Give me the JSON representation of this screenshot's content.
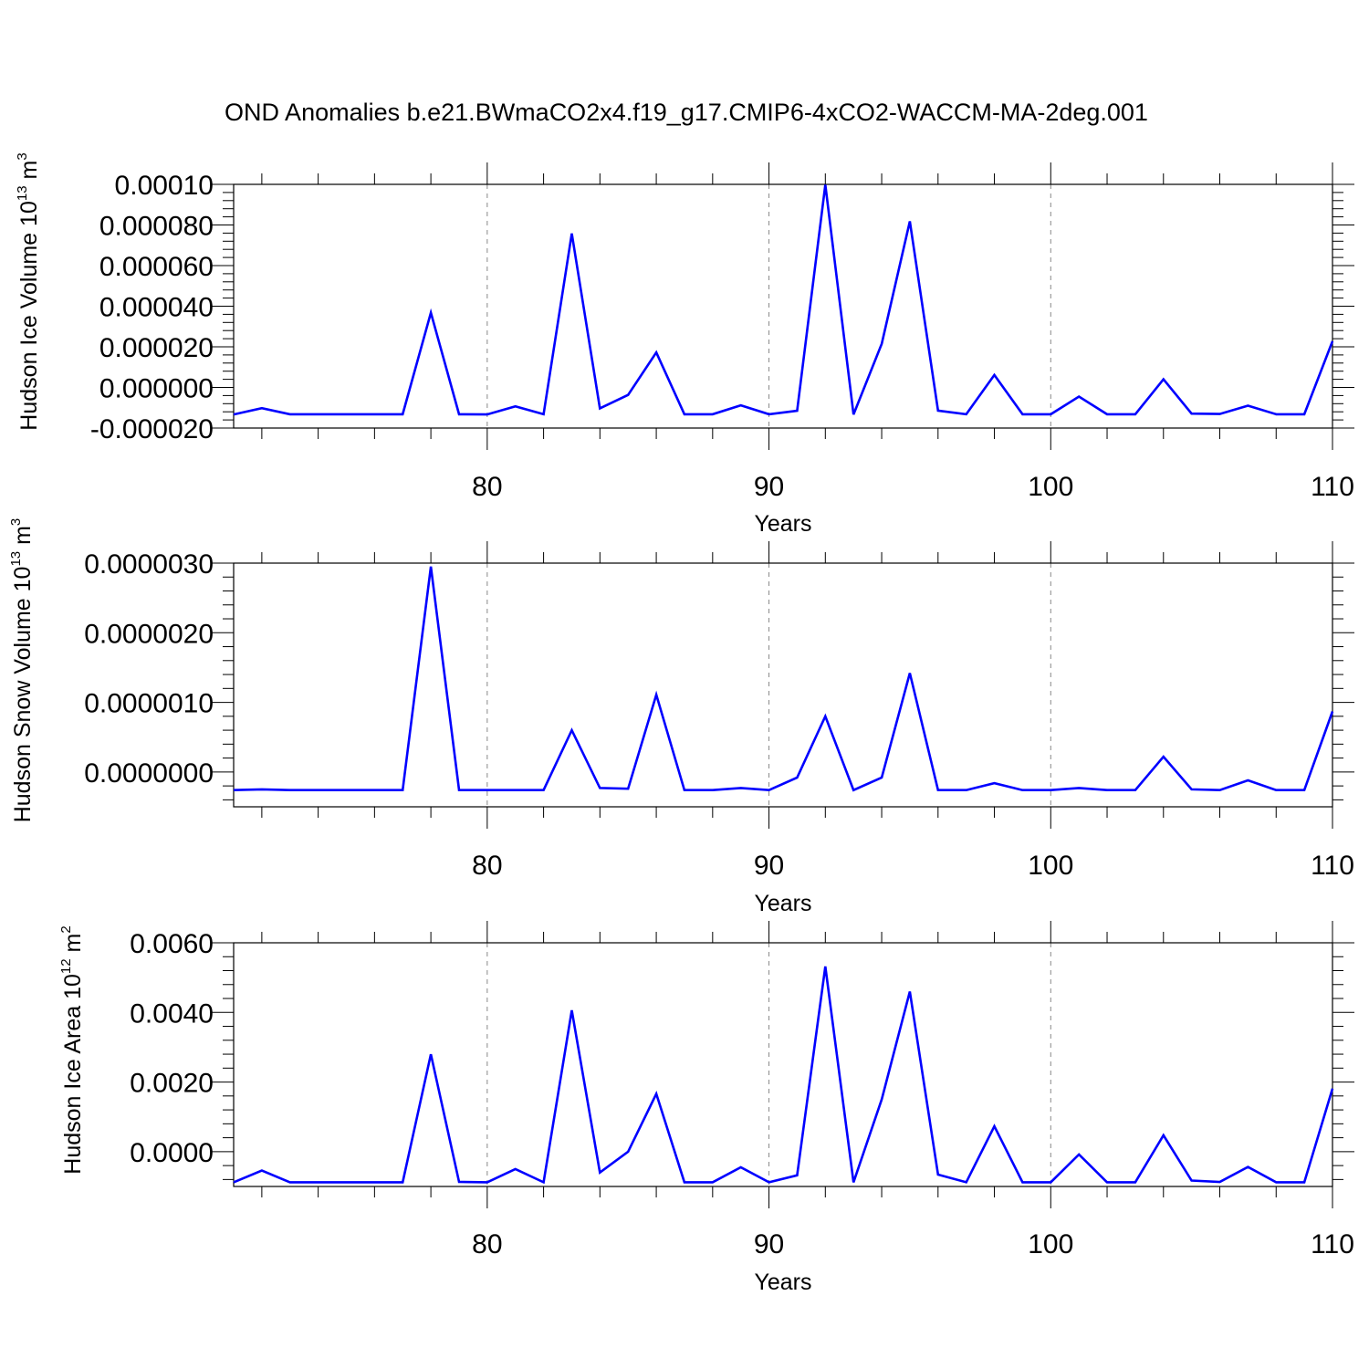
{
  "title": "OND Anomalies b.e21.BWmaCO2x4.f19_g17.CMIP6-4xCO2-WACCM-MA-2deg.001",
  "colors": {
    "line": "#0000ff",
    "axis": "#000000",
    "gridline": "#888888"
  },
  "chart_data": [
    {
      "type": "line",
      "xlabel": "Years",
      "ylabel": {
        "main": "Hudson Ice Volume 10",
        "exponent": "13",
        "unit": "m",
        "unit_power": "3"
      },
      "xlim": [
        71,
        110
      ],
      "ylim": [
        -2e-05,
        0.0001
      ],
      "x_ticks": [
        80,
        90,
        100,
        110
      ],
      "x_tick_labels": [
        "80",
        "90",
        "100",
        "110"
      ],
      "y_ticks": [
        -2e-05,
        0.0,
        2e-05,
        4e-05,
        6e-05,
        8e-05,
        0.0001
      ],
      "y_tick_labels": [
        "-0.000020",
        "0.000000",
        "0.000020",
        "0.000040",
        "0.000060",
        "0.000080",
        "0.00010"
      ],
      "grid": "dashed vertical at major x ticks",
      "series": [
        {
          "x": [
            71,
            72,
            73,
            74,
            75,
            76,
            77,
            78,
            79,
            80,
            81,
            82,
            83,
            84,
            85,
            86,
            87,
            88,
            89,
            90,
            91,
            92,
            93,
            94,
            95,
            96,
            97,
            98,
            99,
            100,
            101,
            102,
            103,
            104,
            105,
            106,
            107,
            108,
            109,
            110
          ],
          "values": [
            -1.33e-05,
            -1.02e-05,
            -1.32e-05,
            -1.32e-05,
            -1.32e-05,
            -1.32e-05,
            -1.32e-05,
            3.68e-05,
            -1.32e-05,
            -1.33e-05,
            -9.3e-06,
            -1.32e-05,
            7.58e-05,
            -1.03e-05,
            -3.7e-06,
            1.72e-05,
            -1.32e-05,
            -1.32e-05,
            -8.8e-06,
            -1.32e-05,
            -1.15e-05,
            9.98e-05,
            -1.33e-05,
            2.15e-05,
            8.18e-05,
            -1.14e-05,
            -1.32e-05,
            6.1e-06,
            -1.32e-05,
            -1.32e-05,
            -4.5e-06,
            -1.32e-05,
            -1.32e-05,
            4e-06,
            -1.29e-05,
            -1.31e-05,
            -9e-06,
            -1.32e-05,
            -1.32e-05,
            2.28e-05
          ]
        }
      ]
    },
    {
      "type": "line",
      "xlabel": "Years",
      "ylabel": {
        "main": "Hudson Snow Volume 10",
        "exponent": "13",
        "unit": "m",
        "unit_power": "3"
      },
      "xlim": [
        71,
        110
      ],
      "ylim": [
        -5e-07,
        3e-06
      ],
      "x_ticks": [
        80,
        90,
        100,
        110
      ],
      "x_tick_labels": [
        "80",
        "90",
        "100",
        "110"
      ],
      "y_ticks": [
        0.0,
        1e-06,
        2e-06,
        3e-06
      ],
      "y_tick_labels": [
        "0.0000000",
        "0.0000010",
        "0.0000020",
        "0.0000030"
      ],
      "grid": "dashed vertical at major x ticks",
      "series": [
        {
          "x": [
            71,
            72,
            73,
            74,
            75,
            76,
            77,
            78,
            79,
            80,
            81,
            82,
            83,
            84,
            85,
            86,
            87,
            88,
            89,
            90,
            91,
            92,
            93,
            94,
            95,
            96,
            97,
            98,
            99,
            100,
            101,
            102,
            103,
            104,
            105,
            106,
            107,
            108,
            109,
            110
          ],
          "values": [
            -2.6e-07,
            -2.5e-07,
            -2.6e-07,
            -2.6e-07,
            -2.6e-07,
            -2.6e-07,
            -2.6e-07,
            2.95e-06,
            -2.6e-07,
            -2.6e-07,
            -2.6e-07,
            -2.6e-07,
            6e-07,
            -2.3e-07,
            -2.4e-07,
            1.11e-06,
            -2.6e-07,
            -2.6e-07,
            -2.3e-07,
            -2.6e-07,
            -8e-08,
            8e-07,
            -2.6e-07,
            -8e-08,
            1.42e-06,
            -2.6e-07,
            -2.6e-07,
            -1.6e-07,
            -2.6e-07,
            -2.6e-07,
            -2.3e-07,
            -2.6e-07,
            -2.6e-07,
            2.2e-07,
            -2.5e-07,
            -2.6e-07,
            -1.2e-07,
            -2.6e-07,
            -2.6e-07,
            8.7e-07
          ]
        }
      ]
    },
    {
      "type": "line",
      "xlabel": "Years",
      "ylabel": {
        "main": "Hudson Ice Area 10",
        "exponent": "12",
        "unit": "m",
        "unit_power": "2"
      },
      "xlim": [
        71,
        110
      ],
      "ylim": [
        -0.001,
        0.006
      ],
      "x_ticks": [
        80,
        90,
        100,
        110
      ],
      "x_tick_labels": [
        "80",
        "90",
        "100",
        "110"
      ],
      "y_ticks": [
        0.0,
        0.002,
        0.004,
        0.006
      ],
      "y_tick_labels": [
        "0.0000",
        "0.0020",
        "0.0040",
        "0.0060"
      ],
      "grid": "dashed vertical at major x ticks",
      "series": [
        {
          "x": [
            71,
            72,
            73,
            74,
            75,
            76,
            77,
            78,
            79,
            80,
            81,
            82,
            83,
            84,
            85,
            86,
            87,
            88,
            89,
            90,
            91,
            92,
            93,
            94,
            95,
            96,
            97,
            98,
            99,
            100,
            101,
            102,
            103,
            104,
            105,
            106,
            107,
            108,
            109,
            110
          ],
          "values": [
            -0.00088,
            -0.00054,
            -0.00088,
            -0.00088,
            -0.00088,
            -0.00088,
            -0.00088,
            0.0028,
            -0.00087,
            -0.00088,
            -0.0005,
            -0.00088,
            0.00406,
            -0.0006,
            0.0,
            0.00166,
            -0.00088,
            -0.00088,
            -0.00045,
            -0.00088,
            -0.00068,
            0.00532,
            -0.00088,
            0.0015,
            0.0046,
            -0.00066,
            -0.00088,
            0.00073,
            -0.00088,
            -0.00088,
            -8e-05,
            -0.00088,
            -0.00088,
            0.00047,
            -0.00083,
            -0.00087,
            -0.00044,
            -0.00088,
            -0.00088,
            0.00181
          ]
        }
      ]
    }
  ]
}
